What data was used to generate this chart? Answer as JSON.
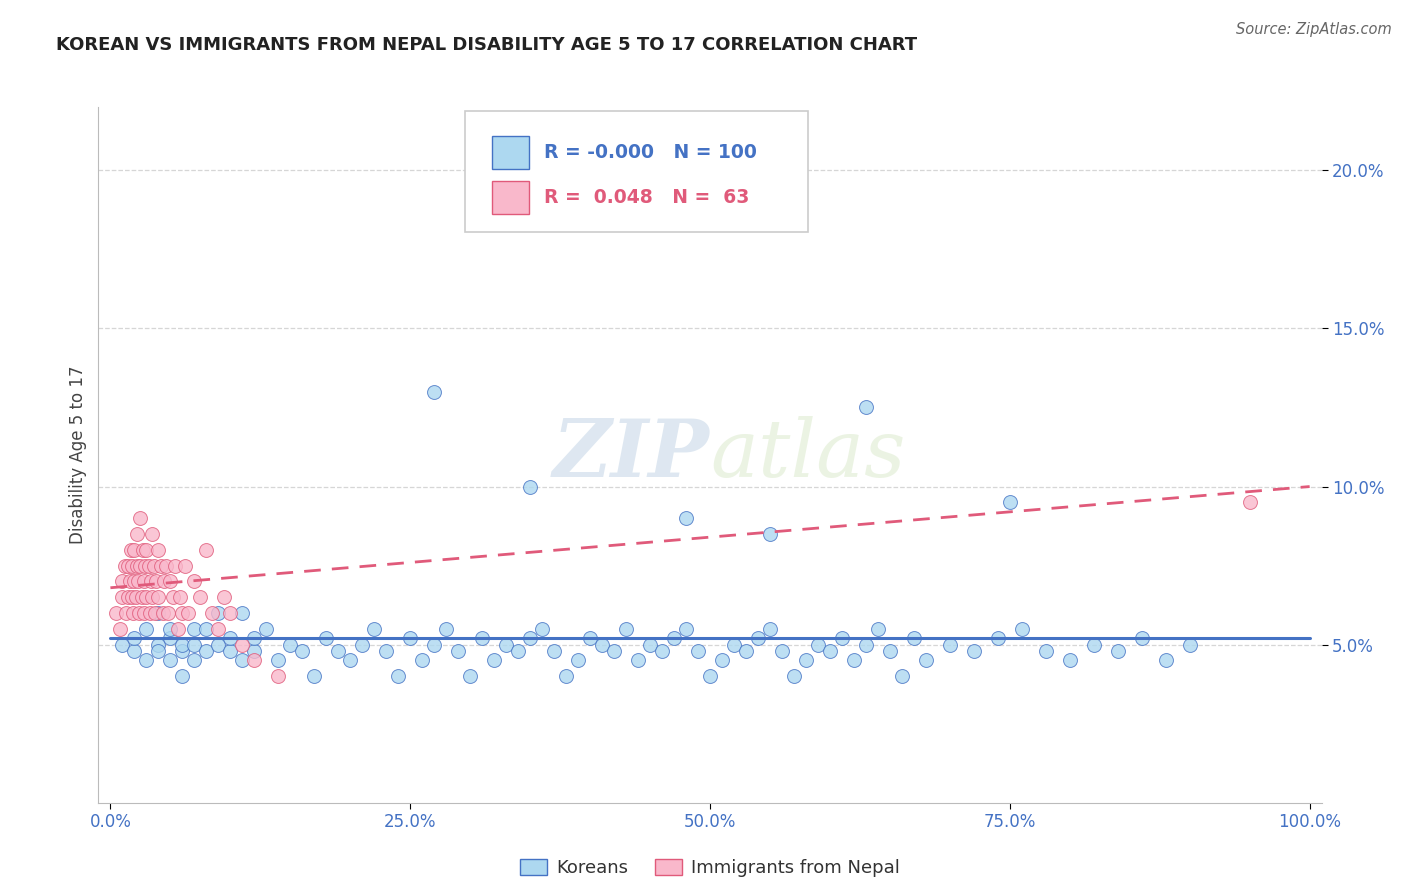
{
  "title": "KOREAN VS IMMIGRANTS FROM NEPAL DISABILITY AGE 5 TO 17 CORRELATION CHART",
  "source": "Source: ZipAtlas.com",
  "ylabel": "Disability Age 5 to 17",
  "legend_label_1": "Koreans",
  "legend_label_2": "Immigrants from Nepal",
  "R1": "-0.000",
  "N1": "100",
  "R2": "0.048",
  "N2": "63",
  "color1": "#ADD8F0",
  "color2": "#F9B8CB",
  "line_color1": "#4472C4",
  "line_color2": "#E05A7A",
  "background_color": "#FFFFFF",
  "grid_color": "#CCCCCC",
  "axis_color": "#4472C4",
  "title_color": "#222222",
  "watermark": "ZIPatlas",
  "xlim": [
    0.0,
    1.0
  ],
  "ylim": [
    0.0,
    0.22
  ],
  "yticks": [
    0.05,
    0.1,
    0.15,
    0.2
  ],
  "xticks": [
    0.0,
    0.25,
    0.5,
    0.75,
    1.0
  ],
  "korean_x": [
    0.01,
    0.02,
    0.02,
    0.03,
    0.03,
    0.04,
    0.04,
    0.04,
    0.05,
    0.05,
    0.05,
    0.06,
    0.06,
    0.06,
    0.07,
    0.07,
    0.07,
    0.08,
    0.08,
    0.09,
    0.09,
    0.1,
    0.1,
    0.11,
    0.11,
    0.12,
    0.12,
    0.13,
    0.14,
    0.15,
    0.16,
    0.17,
    0.18,
    0.19,
    0.2,
    0.21,
    0.22,
    0.23,
    0.24,
    0.25,
    0.26,
    0.27,
    0.28,
    0.29,
    0.3,
    0.31,
    0.32,
    0.33,
    0.34,
    0.35,
    0.36,
    0.37,
    0.38,
    0.39,
    0.4,
    0.41,
    0.42,
    0.43,
    0.44,
    0.45,
    0.46,
    0.47,
    0.48,
    0.49,
    0.5,
    0.51,
    0.52,
    0.53,
    0.54,
    0.55,
    0.56,
    0.57,
    0.58,
    0.59,
    0.6,
    0.61,
    0.62,
    0.63,
    0.64,
    0.65,
    0.66,
    0.67,
    0.68,
    0.7,
    0.72,
    0.74,
    0.76,
    0.78,
    0.8,
    0.82,
    0.84,
    0.86,
    0.88,
    0.9,
    0.27,
    0.35,
    0.48,
    0.55,
    0.63,
    0.75
  ],
  "korean_y": [
    0.05,
    0.048,
    0.052,
    0.055,
    0.045,
    0.05,
    0.048,
    0.06,
    0.052,
    0.055,
    0.045,
    0.048,
    0.04,
    0.05,
    0.055,
    0.05,
    0.045,
    0.048,
    0.055,
    0.06,
    0.05,
    0.048,
    0.052,
    0.045,
    0.06,
    0.048,
    0.052,
    0.055,
    0.045,
    0.05,
    0.048,
    0.04,
    0.052,
    0.048,
    0.045,
    0.05,
    0.055,
    0.048,
    0.04,
    0.052,
    0.045,
    0.05,
    0.055,
    0.048,
    0.04,
    0.052,
    0.045,
    0.05,
    0.048,
    0.052,
    0.055,
    0.048,
    0.04,
    0.045,
    0.052,
    0.05,
    0.048,
    0.055,
    0.045,
    0.05,
    0.048,
    0.052,
    0.055,
    0.048,
    0.04,
    0.045,
    0.05,
    0.048,
    0.052,
    0.055,
    0.048,
    0.04,
    0.045,
    0.05,
    0.048,
    0.052,
    0.045,
    0.05,
    0.055,
    0.048,
    0.04,
    0.052,
    0.045,
    0.05,
    0.048,
    0.052,
    0.055,
    0.048,
    0.045,
    0.05,
    0.048,
    0.052,
    0.045,
    0.05,
    0.13,
    0.1,
    0.09,
    0.085,
    0.125,
    0.095
  ],
  "nepal_x": [
    0.005,
    0.008,
    0.01,
    0.01,
    0.012,
    0.013,
    0.015,
    0.015,
    0.016,
    0.017,
    0.018,
    0.018,
    0.019,
    0.02,
    0.02,
    0.021,
    0.022,
    0.022,
    0.023,
    0.024,
    0.025,
    0.025,
    0.026,
    0.027,
    0.028,
    0.028,
    0.029,
    0.03,
    0.03,
    0.032,
    0.033,
    0.034,
    0.035,
    0.035,
    0.036,
    0.037,
    0.038,
    0.04,
    0.04,
    0.042,
    0.044,
    0.045,
    0.046,
    0.048,
    0.05,
    0.052,
    0.054,
    0.056,
    0.058,
    0.06,
    0.062,
    0.065,
    0.07,
    0.075,
    0.08,
    0.085,
    0.09,
    0.095,
    0.1,
    0.11,
    0.12,
    0.14,
    0.95
  ],
  "nepal_y": [
    0.06,
    0.055,
    0.07,
    0.065,
    0.075,
    0.06,
    0.075,
    0.065,
    0.07,
    0.08,
    0.065,
    0.075,
    0.06,
    0.07,
    0.08,
    0.065,
    0.075,
    0.085,
    0.07,
    0.06,
    0.075,
    0.09,
    0.065,
    0.08,
    0.07,
    0.06,
    0.075,
    0.065,
    0.08,
    0.075,
    0.06,
    0.07,
    0.085,
    0.065,
    0.075,
    0.06,
    0.07,
    0.08,
    0.065,
    0.075,
    0.06,
    0.07,
    0.075,
    0.06,
    0.07,
    0.065,
    0.075,
    0.055,
    0.065,
    0.06,
    0.075,
    0.06,
    0.07,
    0.065,
    0.08,
    0.06,
    0.055,
    0.065,
    0.06,
    0.05,
    0.045,
    0.04,
    0.095
  ],
  "korean_trend_y0": 0.052,
  "korean_trend_y1": 0.052,
  "nepal_trend_y0": 0.068,
  "nepal_trend_y1": 0.1
}
